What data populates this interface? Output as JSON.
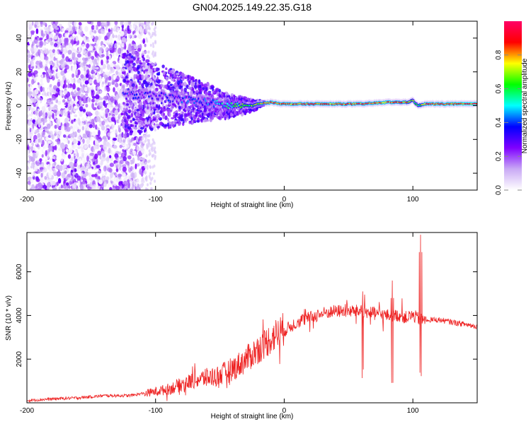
{
  "title": "GN04.2025.149.22.35.G18",
  "chart_data": [
    {
      "type": "heatmap",
      "xlabel": "Height of straight line (km)",
      "ylabel": "Frequency (Hz)",
      "xlim": [
        -200,
        150
      ],
      "ylim": [
        -50,
        50
      ],
      "xticks": [
        -200,
        -100,
        0,
        100
      ],
      "yticks": [
        -40,
        -20,
        0,
        20,
        40
      ],
      "grid": false,
      "colorbar": {
        "label": "Normalized spectral amplitude",
        "range": [
          0,
          1
        ],
        "ticks": [
          "0.0",
          "0.2",
          "0.4",
          "0.6",
          "0.8"
        ],
        "colors": [
          "#ffffff",
          "#c9a9f5",
          "#7f00ff",
          "#0000ff",
          "#00ffff",
          "#00ff00",
          "#ffff00",
          "#ff0000",
          "#ff0066"
        ]
      },
      "ridge": {
        "x": [
          -125,
          -100,
          -80,
          -60,
          -45,
          -35,
          -25,
          -20,
          -10,
          0,
          20,
          40,
          60,
          80,
          95,
          100,
          104,
          110,
          150
        ],
        "frequency": [
          6,
          6,
          4,
          2,
          0,
          0,
          0,
          1,
          2,
          1,
          1,
          1,
          1,
          2,
          2,
          3,
          0,
          1,
          1
        ],
        "amplitude": [
          0.3,
          0.32,
          0.35,
          0.38,
          0.5,
          0.6,
          0.65,
          0.75,
          0.85,
          0.85,
          0.85,
          0.85,
          0.85,
          0.85,
          0.8,
          0.6,
          0.6,
          0.85,
          0.9
        ]
      }
    },
    {
      "type": "line",
      "xlabel": "Height of straight line (km)",
      "ylabel": "SNR (10 * v/v)",
      "xlim": [
        -200,
        150
      ],
      "ylim": [
        0,
        7800
      ],
      "xticks": [
        -200,
        -100,
        0,
        100
      ],
      "yticks": [
        2000,
        4000,
        6000
      ],
      "grid": false,
      "color": "#ee2222",
      "series": [
        {
          "x": [
            -200,
            -180,
            -160,
            -140,
            -120,
            -110,
            -100,
            -90,
            -80,
            -70,
            -60,
            -50,
            -40,
            -30,
            -20,
            -10,
            0,
            10,
            20,
            30,
            40,
            50,
            60,
            70,
            80,
            90,
            95,
            100,
            103,
            106,
            110,
            120,
            130,
            140,
            150
          ],
          "y": [
            80,
            150,
            200,
            300,
            300,
            400,
            500,
            600,
            800,
            1000,
            1100,
            1200,
            1500,
            1900,
            2400,
            2900,
            3300,
            3700,
            3900,
            4100,
            4200,
            4200,
            4200,
            4100,
            4000,
            4000,
            3900,
            4000,
            3900,
            3800,
            3800,
            3800,
            3700,
            3600,
            3500
          ]
        }
      ],
      "annotations": [
        {
          "x": 61,
          "y": 5100,
          "label": ""
        },
        {
          "x": 84,
          "y": 5600,
          "label": ""
        },
        {
          "x": 106,
          "y": 7700,
          "label": ""
        }
      ]
    }
  ]
}
